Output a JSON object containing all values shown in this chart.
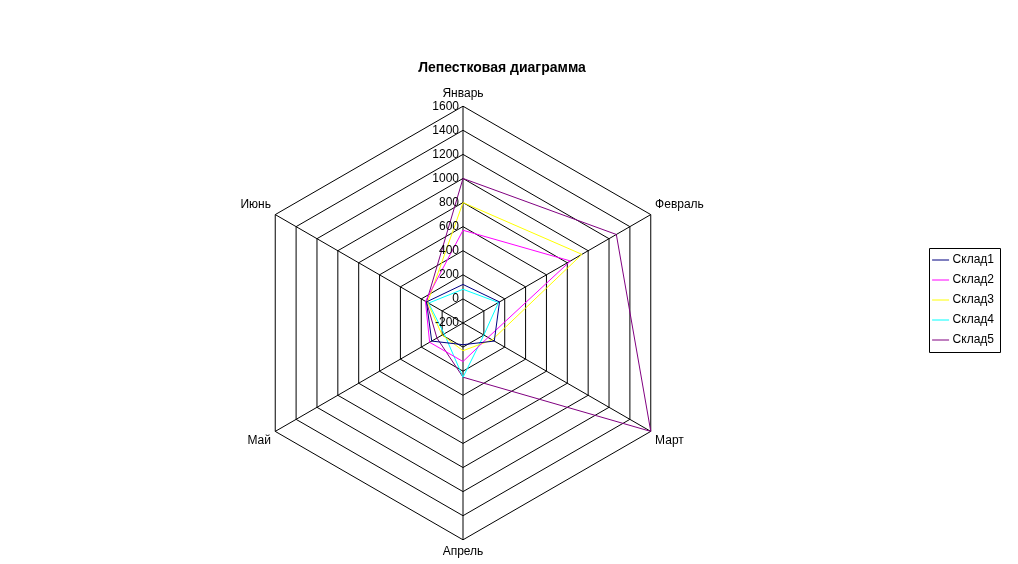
{
  "chart_data": {
    "type": "radar",
    "title": "Лепестковая диаграмма",
    "categories": [
      "Январь",
      "Февраль",
      "Март",
      "Апрель",
      "Май",
      "Июнь"
    ],
    "series": [
      {
        "name": "Склад1",
        "color": "#000080",
        "values": [
          120,
          150,
          100,
          -20,
          100,
          150
        ]
      },
      {
        "name": "Склад2",
        "color": "#ff00ff",
        "values": [
          570,
          830,
          40,
          120,
          120,
          160
        ]
      },
      {
        "name": "Склад3",
        "color": "#ffff00",
        "values": [
          800,
          940,
          80,
          30,
          0,
          140
        ]
      },
      {
        "name": "Склад4",
        "color": "#00ffff",
        "values": [
          80,
          140,
          0,
          250,
          -20,
          130
        ]
      },
      {
        "name": "Склад5",
        "color": "#800080",
        "values": [
          1000,
          1270,
          1600,
          250,
          50,
          150
        ]
      }
    ],
    "ylim": [
      -200,
      1600
    ],
    "yticks": [
      -200,
      0,
      200,
      400,
      600,
      800,
      1000,
      1200,
      1400,
      1600
    ],
    "legend": "right",
    "marker": "none"
  }
}
